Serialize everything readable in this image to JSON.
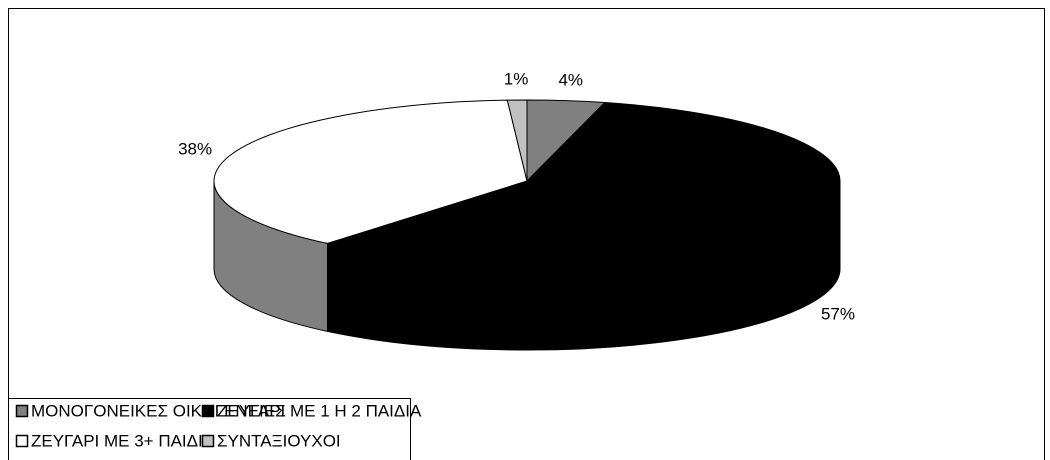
{
  "chart_data": {
    "type": "pie3d",
    "categories": [
      "ΜΟΝΟΓΟΝΕΙΚΕΣ ΟΙΚΟΓΕΝΕΙΕΣ",
      "ΖΕΥΓΑΡΙ ΜΕ 1 Η 2 ΠΑΙΔΙΑ",
      "ΖΕΥΓΑΡΙ ΜΕ 3+ ΠΑΙΔΙΑ",
      "ΣΥΝΤΑΞΙΟΥΧΟΙ"
    ],
    "values": [
      4,
      57,
      38,
      1
    ],
    "value_labels": [
      "4%",
      "57%",
      "38%",
      "1%"
    ],
    "colors": [
      "#808080",
      "#000000",
      "#ffffff",
      "#c0c0c0"
    ],
    "legend": "bottom-left"
  }
}
